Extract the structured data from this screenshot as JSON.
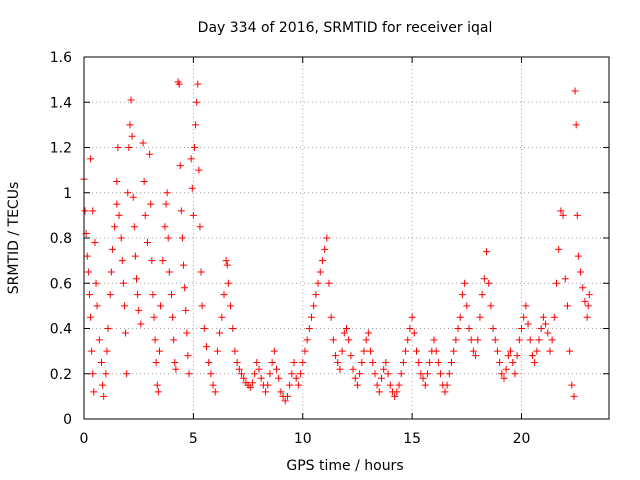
{
  "chart_data": {
    "type": "scatter",
    "title": "Day 334 of 2016, SRMTID for receiver iqal",
    "xlabel": "GPS time / hours",
    "ylabel": "SRMTID / TECUs",
    "xlim": [
      0,
      24
    ],
    "ylim": [
      0,
      1.6
    ],
    "xticks": [
      0,
      5,
      10,
      15,
      20
    ],
    "yticks": [
      0,
      0.2,
      0.4,
      0.6,
      0.8,
      1,
      1.2,
      1.4,
      1.6
    ],
    "xtick_labels": [
      "0",
      "5",
      "10",
      "15",
      "20"
    ],
    "ytick_labels": [
      "0",
      "0.2",
      "0.4",
      "0.6",
      "0.8",
      "1",
      "1.2",
      "1.4",
      "1.6"
    ],
    "grid": true,
    "marker": "+",
    "series": [
      {
        "name": "SRMTID",
        "color": "#ff0000",
        "points": [
          [
            0.0,
            1.06
          ],
          [
            0.05,
            0.92
          ],
          [
            0.1,
            0.82
          ],
          [
            0.15,
            0.72
          ],
          [
            0.2,
            0.65
          ],
          [
            0.25,
            0.55
          ],
          [
            0.3,
            0.45
          ],
          [
            0.35,
            0.3
          ],
          [
            0.4,
            0.2
          ],
          [
            0.45,
            0.12
          ],
          [
            0.3,
            1.15
          ],
          [
            0.4,
            0.92
          ],
          [
            0.5,
            0.78
          ],
          [
            0.55,
            0.6
          ],
          [
            0.6,
            0.5
          ],
          [
            0.7,
            0.35
          ],
          [
            0.8,
            0.25
          ],
          [
            0.85,
            0.15
          ],
          [
            0.9,
            0.1
          ],
          [
            1.0,
            0.2
          ],
          [
            1.05,
            0.3
          ],
          [
            1.1,
            0.4
          ],
          [
            1.2,
            0.55
          ],
          [
            1.25,
            0.65
          ],
          [
            1.3,
            0.75
          ],
          [
            1.4,
            0.85
          ],
          [
            1.5,
            0.95
          ],
          [
            1.5,
            1.05
          ],
          [
            1.55,
            1.2
          ],
          [
            1.6,
            0.9
          ],
          [
            1.7,
            0.8
          ],
          [
            1.75,
            0.7
          ],
          [
            1.8,
            0.6
          ],
          [
            1.85,
            0.5
          ],
          [
            1.9,
            0.38
          ],
          [
            1.95,
            0.2
          ],
          [
            2.0,
            1.0
          ],
          [
            2.05,
            1.2
          ],
          [
            2.1,
            1.3
          ],
          [
            2.15,
            1.41
          ],
          [
            2.2,
            1.25
          ],
          [
            2.25,
            0.98
          ],
          [
            2.3,
            0.85
          ],
          [
            2.35,
            0.72
          ],
          [
            2.4,
            0.62
          ],
          [
            2.45,
            0.55
          ],
          [
            2.5,
            0.48
          ],
          [
            2.6,
            0.42
          ],
          [
            2.7,
            1.22
          ],
          [
            2.75,
            1.05
          ],
          [
            2.8,
            0.9
          ],
          [
            2.9,
            0.78
          ],
          [
            3.0,
            1.17
          ],
          [
            3.05,
            0.95
          ],
          [
            3.1,
            0.7
          ],
          [
            3.15,
            0.55
          ],
          [
            3.2,
            0.45
          ],
          [
            3.25,
            0.35
          ],
          [
            3.3,
            0.25
          ],
          [
            3.35,
            0.15
          ],
          [
            3.4,
            0.12
          ],
          [
            3.45,
            0.3
          ],
          [
            3.5,
            0.5
          ],
          [
            3.6,
            0.7
          ],
          [
            3.7,
            0.85
          ],
          [
            3.75,
            0.95
          ],
          [
            3.8,
            1.0
          ],
          [
            3.85,
            0.8
          ],
          [
            3.9,
            0.65
          ],
          [
            4.0,
            0.55
          ],
          [
            4.05,
            0.45
          ],
          [
            4.1,
            0.35
          ],
          [
            4.15,
            0.25
          ],
          [
            4.2,
            0.22
          ],
          [
            4.3,
            1.49
          ],
          [
            4.35,
            1.48
          ],
          [
            4.4,
            1.12
          ],
          [
            4.45,
            0.92
          ],
          [
            4.5,
            0.8
          ],
          [
            4.55,
            0.68
          ],
          [
            4.6,
            0.58
          ],
          [
            4.65,
            0.48
          ],
          [
            4.7,
            0.38
          ],
          [
            4.75,
            0.28
          ],
          [
            4.8,
            0.2
          ],
          [
            4.9,
            1.15
          ],
          [
            4.95,
            1.02
          ],
          [
            5.0,
            0.9
          ],
          [
            5.05,
            1.2
          ],
          [
            5.1,
            1.3
          ],
          [
            5.15,
            1.4
          ],
          [
            5.2,
            1.48
          ],
          [
            5.25,
            1.1
          ],
          [
            5.3,
            0.85
          ],
          [
            5.35,
            0.65
          ],
          [
            5.4,
            0.5
          ],
          [
            5.5,
            0.4
          ],
          [
            5.6,
            0.32
          ],
          [
            5.7,
            0.25
          ],
          [
            5.8,
            0.2
          ],
          [
            5.9,
            0.15
          ],
          [
            6.0,
            0.12
          ],
          [
            6.1,
            0.3
          ],
          [
            6.2,
            0.38
          ],
          [
            6.3,
            0.45
          ],
          [
            6.4,
            0.55
          ],
          [
            6.5,
            0.7
          ],
          [
            6.55,
            0.68
          ],
          [
            6.6,
            0.6
          ],
          [
            6.7,
            0.5
          ],
          [
            6.8,
            0.4
          ],
          [
            6.9,
            0.3
          ],
          [
            7.0,
            0.25
          ],
          [
            7.1,
            0.22
          ],
          [
            7.2,
            0.2
          ],
          [
            7.3,
            0.18
          ],
          [
            7.4,
            0.16
          ],
          [
            7.5,
            0.15
          ],
          [
            7.6,
            0.14
          ],
          [
            7.7,
            0.16
          ],
          [
            7.8,
            0.2
          ],
          [
            7.9,
            0.25
          ],
          [
            8.0,
            0.22
          ],
          [
            8.1,
            0.18
          ],
          [
            8.2,
            0.15
          ],
          [
            8.3,
            0.12
          ],
          [
            8.4,
            0.15
          ],
          [
            8.5,
            0.2
          ],
          [
            8.6,
            0.25
          ],
          [
            8.7,
            0.3
          ],
          [
            8.8,
            0.22
          ],
          [
            8.9,
            0.18
          ],
          [
            9.0,
            0.12
          ],
          [
            9.1,
            0.1
          ],
          [
            9.2,
            0.08
          ],
          [
            9.3,
            0.1
          ],
          [
            9.4,
            0.15
          ],
          [
            9.5,
            0.2
          ],
          [
            9.6,
            0.25
          ],
          [
            9.7,
            0.18
          ],
          [
            9.8,
            0.15
          ],
          [
            9.9,
            0.2
          ],
          [
            10.0,
            0.25
          ],
          [
            10.1,
            0.3
          ],
          [
            10.2,
            0.35
          ],
          [
            10.3,
            0.4
          ],
          [
            10.4,
            0.45
          ],
          [
            10.5,
            0.5
          ],
          [
            10.6,
            0.55
          ],
          [
            10.7,
            0.6
          ],
          [
            10.8,
            0.65
          ],
          [
            10.9,
            0.7
          ],
          [
            11.0,
            0.75
          ],
          [
            11.1,
            0.8
          ],
          [
            11.2,
            0.6
          ],
          [
            11.3,
            0.45
          ],
          [
            11.4,
            0.35
          ],
          [
            11.5,
            0.28
          ],
          [
            11.6,
            0.25
          ],
          [
            11.7,
            0.22
          ],
          [
            11.8,
            0.3
          ],
          [
            11.9,
            0.38
          ],
          [
            12.0,
            0.4
          ],
          [
            12.1,
            0.35
          ],
          [
            12.2,
            0.28
          ],
          [
            12.3,
            0.22
          ],
          [
            12.4,
            0.18
          ],
          [
            12.5,
            0.15
          ],
          [
            12.6,
            0.2
          ],
          [
            12.7,
            0.25
          ],
          [
            12.8,
            0.3
          ],
          [
            12.9,
            0.35
          ],
          [
            13.0,
            0.38
          ],
          [
            13.1,
            0.3
          ],
          [
            13.2,
            0.25
          ],
          [
            13.3,
            0.2
          ],
          [
            13.4,
            0.15
          ],
          [
            13.5,
            0.12
          ],
          [
            13.6,
            0.18
          ],
          [
            13.7,
            0.22
          ],
          [
            13.8,
            0.25
          ],
          [
            13.9,
            0.2
          ],
          [
            14.0,
            0.15
          ],
          [
            14.1,
            0.12
          ],
          [
            14.2,
            0.1
          ],
          [
            14.3,
            0.12
          ],
          [
            14.4,
            0.15
          ],
          [
            14.5,
            0.2
          ],
          [
            14.6,
            0.25
          ],
          [
            14.7,
            0.3
          ],
          [
            14.8,
            0.35
          ],
          [
            14.9,
            0.4
          ],
          [
            15.0,
            0.45
          ],
          [
            15.1,
            0.38
          ],
          [
            15.2,
            0.3
          ],
          [
            15.3,
            0.25
          ],
          [
            15.4,
            0.2
          ],
          [
            15.5,
            0.18
          ],
          [
            15.6,
            0.15
          ],
          [
            15.7,
            0.2
          ],
          [
            15.8,
            0.25
          ],
          [
            15.9,
            0.3
          ],
          [
            16.0,
            0.35
          ],
          [
            16.1,
            0.3
          ],
          [
            16.2,
            0.25
          ],
          [
            16.3,
            0.2
          ],
          [
            16.4,
            0.15
          ],
          [
            16.5,
            0.12
          ],
          [
            16.6,
            0.15
          ],
          [
            16.7,
            0.2
          ],
          [
            16.8,
            0.25
          ],
          [
            16.9,
            0.3
          ],
          [
            17.0,
            0.35
          ],
          [
            17.1,
            0.4
          ],
          [
            17.2,
            0.45
          ],
          [
            17.3,
            0.55
          ],
          [
            17.4,
            0.6
          ],
          [
            17.5,
            0.5
          ],
          [
            17.6,
            0.4
          ],
          [
            17.7,
            0.35
          ],
          [
            17.8,
            0.3
          ],
          [
            17.9,
            0.28
          ],
          [
            18.0,
            0.35
          ],
          [
            18.1,
            0.45
          ],
          [
            18.2,
            0.55
          ],
          [
            18.3,
            0.62
          ],
          [
            18.4,
            0.74
          ],
          [
            18.5,
            0.6
          ],
          [
            18.6,
            0.5
          ],
          [
            18.7,
            0.4
          ],
          [
            18.8,
            0.35
          ],
          [
            18.9,
            0.3
          ],
          [
            19.0,
            0.25
          ],
          [
            19.1,
            0.2
          ],
          [
            19.2,
            0.18
          ],
          [
            19.3,
            0.22
          ],
          [
            19.4,
            0.28
          ],
          [
            19.5,
            0.3
          ],
          [
            19.6,
            0.25
          ],
          [
            19.7,
            0.2
          ],
          [
            19.8,
            0.28
          ],
          [
            19.9,
            0.35
          ],
          [
            20.0,
            0.4
          ],
          [
            20.1,
            0.45
          ],
          [
            20.2,
            0.5
          ],
          [
            20.3,
            0.42
          ],
          [
            20.4,
            0.35
          ],
          [
            20.5,
            0.28
          ],
          [
            20.6,
            0.25
          ],
          [
            20.7,
            0.3
          ],
          [
            20.8,
            0.35
          ],
          [
            20.9,
            0.4
          ],
          [
            21.0,
            0.45
          ],
          [
            21.1,
            0.42
          ],
          [
            21.2,
            0.38
          ],
          [
            21.3,
            0.3
          ],
          [
            21.4,
            0.35
          ],
          [
            21.5,
            0.45
          ],
          [
            21.6,
            0.6
          ],
          [
            21.7,
            0.75
          ],
          [
            21.8,
            0.92
          ],
          [
            21.9,
            0.9
          ],
          [
            22.0,
            0.62
          ],
          [
            22.1,
            0.5
          ],
          [
            22.2,
            0.3
          ],
          [
            22.3,
            0.15
          ],
          [
            22.4,
            0.1
          ],
          [
            22.45,
            1.45
          ],
          [
            22.5,
            1.3
          ],
          [
            22.55,
            0.9
          ],
          [
            22.6,
            0.72
          ],
          [
            22.7,
            0.65
          ],
          [
            22.8,
            0.58
          ],
          [
            22.9,
            0.52
          ],
          [
            23.0,
            0.45
          ],
          [
            23.05,
            0.5
          ],
          [
            23.1,
            0.55
          ]
        ]
      }
    ]
  }
}
